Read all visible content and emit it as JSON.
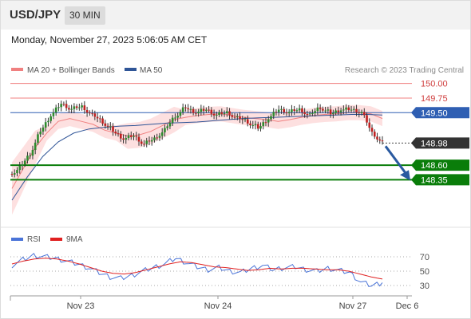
{
  "header": {
    "symbol": "USD/JPY",
    "timeframe": "30 MIN"
  },
  "datetime": "Monday, November 27, 2023 5:06:05 AM CET",
  "legend": {
    "ma20_label": "MA 20 + Bollinger Bands",
    "ma50_label": "MA 50",
    "research": "Research © 2023 Trading Central",
    "colors": {
      "ma20": "#f08080",
      "ma50": "#2f5597",
      "bands": "#fcd6d6",
      "support": "#0a7d0a",
      "resistance": "#f08080",
      "arrow": "#2a5aa0"
    }
  },
  "levels": {
    "resistance_2": "150.00",
    "resistance_1": "149.75",
    "pivot": "149.50",
    "last": "148.98",
    "support_1": "148.60",
    "support_2": "148.35"
  },
  "rsi_legend": {
    "rsi_label": "RSI",
    "ma_label": "9MA",
    "rsi_color": "#4a74d8",
    "ma_color": "#e02020"
  },
  "chart_data": {
    "type": "candlestick",
    "price_axis": {
      "min": 147.7,
      "max": 150.05,
      "ticks": [
        150.0,
        149.75,
        149.5,
        148.98,
        148.6,
        148.35
      ]
    },
    "x_labels": [
      "Nov 23",
      "Nov 24",
      "Nov 27",
      "Dec 6"
    ],
    "close_series": [
      148.55,
      148.8,
      149.2,
      149.45,
      149.65,
      149.55,
      149.6,
      149.45,
      149.35,
      149.2,
      149.05,
      149.1,
      148.95,
      149.05,
      149.2,
      149.45,
      149.6,
      149.5,
      149.55,
      149.45,
      149.5,
      149.4,
      149.35,
      149.25,
      149.4,
      149.55,
      149.5,
      149.55,
      149.45,
      149.6,
      149.5,
      149.55,
      149.55,
      149.5,
      149.15,
      148.98
    ],
    "ma20_series": [
      148.2,
      148.55,
      148.9,
      149.15,
      149.35,
      149.4,
      149.35,
      149.3,
      149.2,
      149.15,
      149.1,
      149.12,
      149.18,
      149.28,
      149.38,
      149.42,
      149.45,
      149.47,
      149.48,
      149.45,
      149.42,
      149.4,
      149.38,
      149.35,
      149.38,
      149.42,
      149.45,
      149.47,
      149.48,
      149.5,
      149.5,
      149.48,
      149.4
    ],
    "ma50_series": [
      148.0,
      148.4,
      148.75,
      149.0,
      149.15,
      149.22,
      149.25,
      149.27,
      149.28,
      149.3,
      149.32,
      149.33,
      149.34,
      149.36,
      149.38,
      149.4,
      149.41,
      149.42,
      149.43,
      149.44,
      149.45,
      149.46,
      149.47,
      149.47,
      149.46
    ],
    "forecast_arrow": {
      "from": 148.98,
      "to": 148.42
    },
    "rsi": {
      "ticks": [
        70,
        50,
        30
      ],
      "rsi_values": [
        58,
        66,
        72,
        70,
        68,
        64,
        60,
        55,
        48,
        42,
        40,
        44,
        50,
        55,
        60,
        68,
        62,
        56,
        52,
        55,
        50,
        48,
        54,
        58,
        52,
        55,
        56,
        52,
        50,
        54,
        51,
        48,
        35,
        30,
        34
      ],
      "ma9_values": [
        60,
        64,
        67,
        68,
        67,
        64,
        60,
        55,
        50,
        47,
        46,
        48,
        52,
        56,
        60,
        63,
        62,
        59,
        56,
        55,
        53,
        51,
        52,
        54,
        53,
        54,
        54,
        53,
        52,
        52,
        50,
        46,
        42,
        39
      ]
    }
  }
}
